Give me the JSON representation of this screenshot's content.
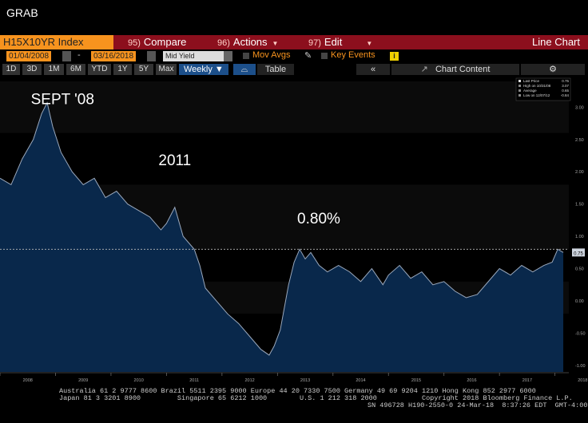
{
  "window": {
    "title": "GRAB"
  },
  "toolbar": {
    "ticker": "H15X10YR Index",
    "compare": {
      "num": "95)",
      "label": "Compare"
    },
    "actions": {
      "num": "96)",
      "label": "Actions"
    },
    "edit": {
      "num": "97)",
      "label": "Edit"
    },
    "view_label": "Line Chart"
  },
  "controls": {
    "start_date": "01/04/2008",
    "end_date": "03/16/2018",
    "date_sep": "-",
    "field": "Mid Yield",
    "mov_avgs": "Mov Avgs",
    "key_events": "Key Events",
    "info": "i"
  },
  "timebar": {
    "ranges": [
      "1D",
      "3D",
      "1M",
      "6M",
      "YTD",
      "1Y",
      "5Y",
      "Max"
    ],
    "frequency": "Weekly ▼",
    "table_label": "Table",
    "collapse": "«",
    "chart_content": "Chart Content",
    "settings_icon": "gear-icon"
  },
  "legend": {
    "last_price": {
      "label": "Last Price",
      "value": "0.75"
    },
    "high": {
      "label": "High on 10/31/08",
      "value": "3.07"
    },
    "average": {
      "label": "Average",
      "value": "0.65"
    },
    "low": {
      "label": "Low on 12/07/12",
      "value": "-0.84"
    }
  },
  "annotations": [
    {
      "text": "SEPT '08",
      "x": 2008.7,
      "y": 3.05
    },
    {
      "text": "2011",
      "x": 2011.0,
      "y": 2.1
    },
    {
      "text": "0.80%",
      "x": 2013.5,
      "y": 1.2
    }
  ],
  "last_value_tag": "0.75",
  "colors": {
    "fill": "#0a2a4f",
    "line": "#9aa8bc",
    "accent": "#f7931e",
    "menu": "#8c0f1d"
  },
  "chart_data": {
    "type": "area",
    "title": "",
    "xlabel": "",
    "ylabel": "",
    "xlim": [
      2008.0,
      2018.25
    ],
    "ylim": [
      -1.1,
      3.4
    ],
    "x_ticks": [
      "2008",
      "2009",
      "2010",
      "2011",
      "2012",
      "2013",
      "2014",
      "2015",
      "2016",
      "2017",
      "2018"
    ],
    "y_ticks": [
      "3.00",
      "2.50",
      "2.00",
      "1.50",
      "1.00",
      "0.50",
      "0.00",
      "-0.50",
      "-1.00"
    ],
    "reference_line": 0.8,
    "x": [
      2008.0,
      2008.2,
      2008.4,
      2008.6,
      2008.75,
      2008.85,
      2008.95,
      2009.1,
      2009.3,
      2009.5,
      2009.7,
      2009.9,
      2010.1,
      2010.3,
      2010.5,
      2010.7,
      2010.9,
      2011.0,
      2011.15,
      2011.3,
      2011.5,
      2011.6,
      2011.7,
      2011.9,
      2012.1,
      2012.3,
      2012.5,
      2012.7,
      2012.85,
      2012.94,
      2013.05,
      2013.2,
      2013.3,
      2013.4,
      2013.5,
      2013.6,
      2013.75,
      2013.9,
      2014.1,
      2014.3,
      2014.5,
      2014.7,
      2014.9,
      2015.0,
      2015.2,
      2015.4,
      2015.6,
      2015.8,
      2016.0,
      2016.2,
      2016.4,
      2016.6,
      2016.8,
      2017.0,
      2017.2,
      2017.4,
      2017.6,
      2017.8,
      2017.95,
      2018.05,
      2018.15
    ],
    "values": [
      1.9,
      1.8,
      2.2,
      2.5,
      2.9,
      3.07,
      2.7,
      2.3,
      2.0,
      1.8,
      1.9,
      1.6,
      1.7,
      1.5,
      1.4,
      1.3,
      1.1,
      1.2,
      1.45,
      1.0,
      0.8,
      0.55,
      0.2,
      0.0,
      -0.2,
      -0.35,
      -0.55,
      -0.75,
      -0.84,
      -0.7,
      -0.45,
      0.25,
      0.6,
      0.8,
      0.65,
      0.75,
      0.55,
      0.45,
      0.55,
      0.45,
      0.3,
      0.5,
      0.25,
      0.4,
      0.55,
      0.35,
      0.45,
      0.25,
      0.3,
      0.15,
      0.05,
      0.1,
      0.3,
      0.5,
      0.4,
      0.55,
      0.45,
      0.55,
      0.6,
      0.8,
      0.75
    ]
  },
  "footer": {
    "line1": "Australia 61 2 9777 8600 Brazil 5511 2395 9000 Europe 44 20 7330 7500 Germany 49 69 9204 1210 Hong Kong 852 2977 6000",
    "line2": "Japan 81 3 3201 8900         Singapore 65 6212 1000        U.S. 1 212 318 2000           Copyright 2018 Bloomberg Finance L.P.",
    "line3": "SN 496728 H190-2550-0 24-Mar-18  8:37:26 EDT  GMT-4:00"
  }
}
